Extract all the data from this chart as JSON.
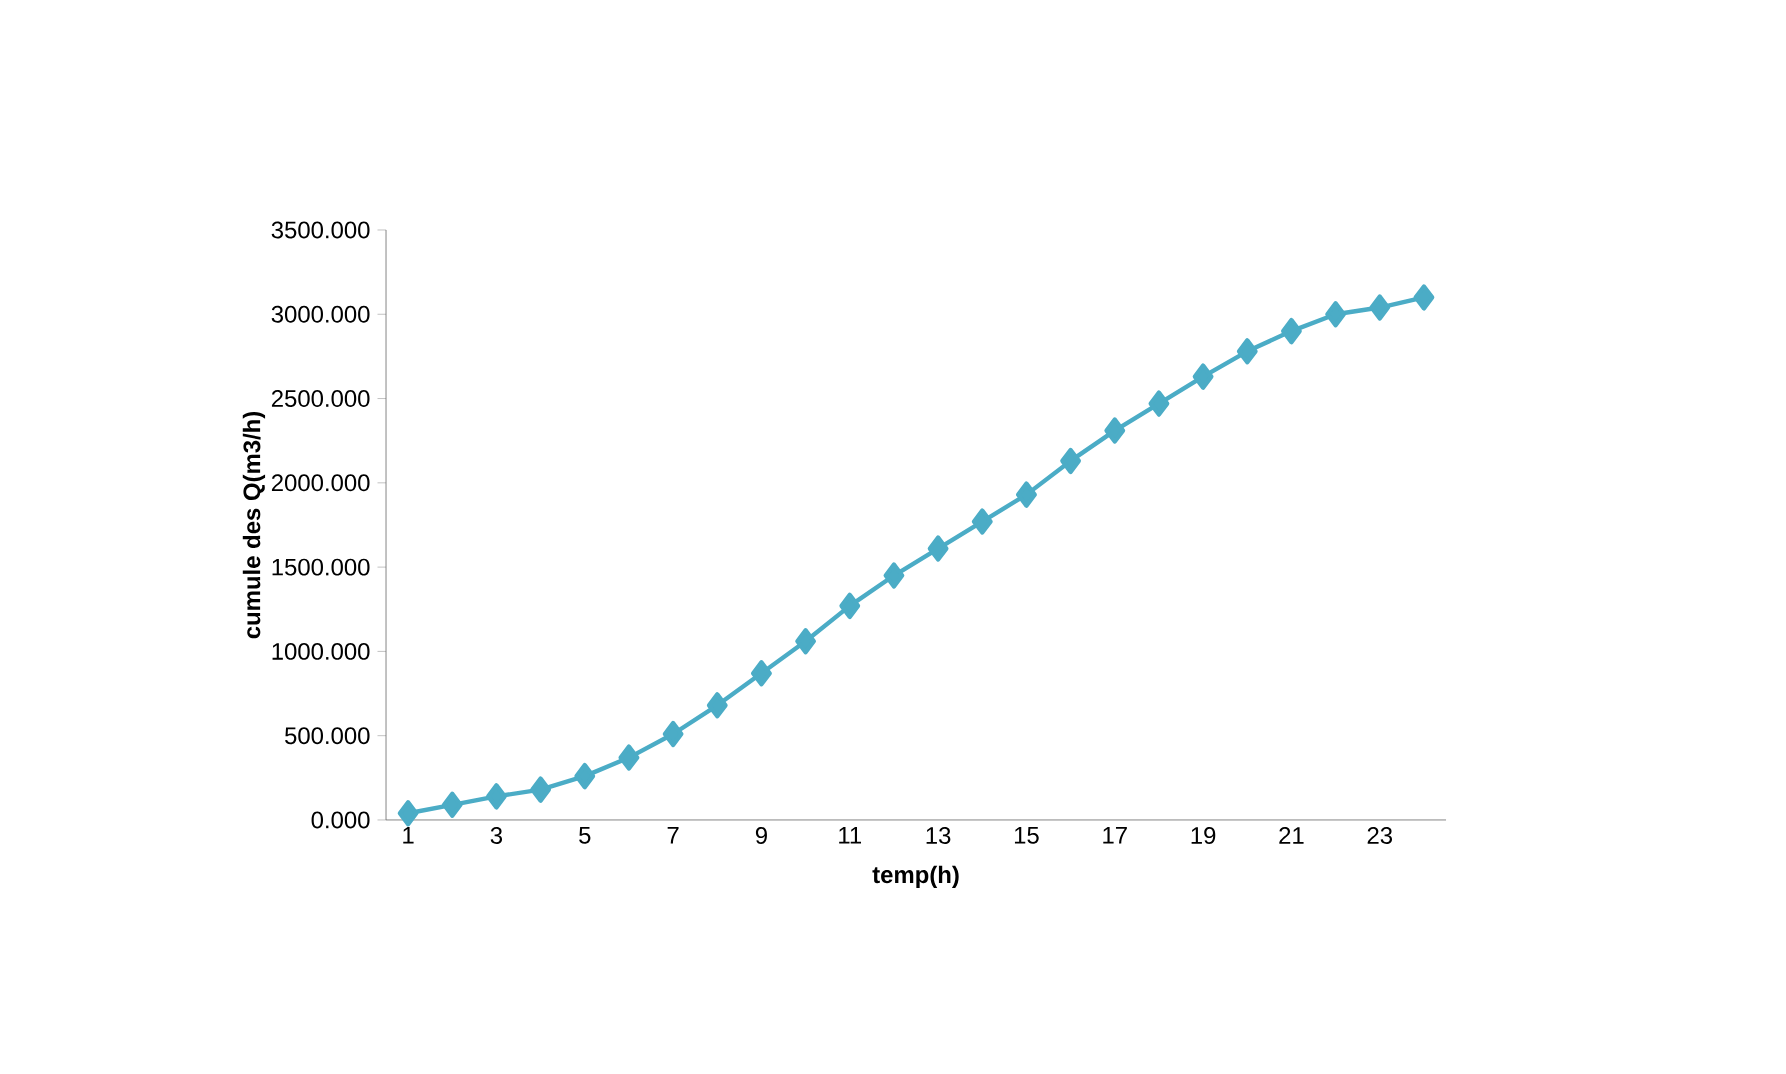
{
  "chart_data": {
    "type": "line",
    "xlabel": "temp(h)",
    "ylabel": "cumule des Q(m3/h)",
    "categories": [
      "1",
      null,
      "3",
      null,
      "5",
      null,
      "7",
      null,
      "9",
      null,
      "11",
      null,
      "13",
      null,
      "15",
      null,
      "17",
      null,
      "19",
      null,
      "21",
      null,
      "23",
      null
    ],
    "series": [
      {
        "color": "#4bacc6",
        "values": [
          40,
          90,
          140,
          180,
          260,
          370,
          510,
          680,
          870,
          1060,
          1270,
          1450,
          1610,
          1770,
          1930,
          2130,
          2310,
          2470,
          2630,
          2780,
          2900,
          3000,
          3040,
          3100
        ]
      }
    ],
    "ylim": [
      0,
      3500
    ],
    "yticks": [
      {
        "value": 0,
        "label": "0.000"
      },
      {
        "value": 500,
        "label": "500.000"
      },
      {
        "value": 1000,
        "label": "1000.000"
      },
      {
        "value": 1500,
        "label": "1500.000"
      },
      {
        "value": 2000,
        "label": "2000.000"
      },
      {
        "value": 2500,
        "label": "2500.000"
      },
      {
        "value": 3000,
        "label": "3000.000"
      },
      {
        "value": 3500,
        "label": "3500.000"
      }
    ],
    "grid": false,
    "legend": false,
    "marker": "diamond",
    "line_style": "solid"
  }
}
